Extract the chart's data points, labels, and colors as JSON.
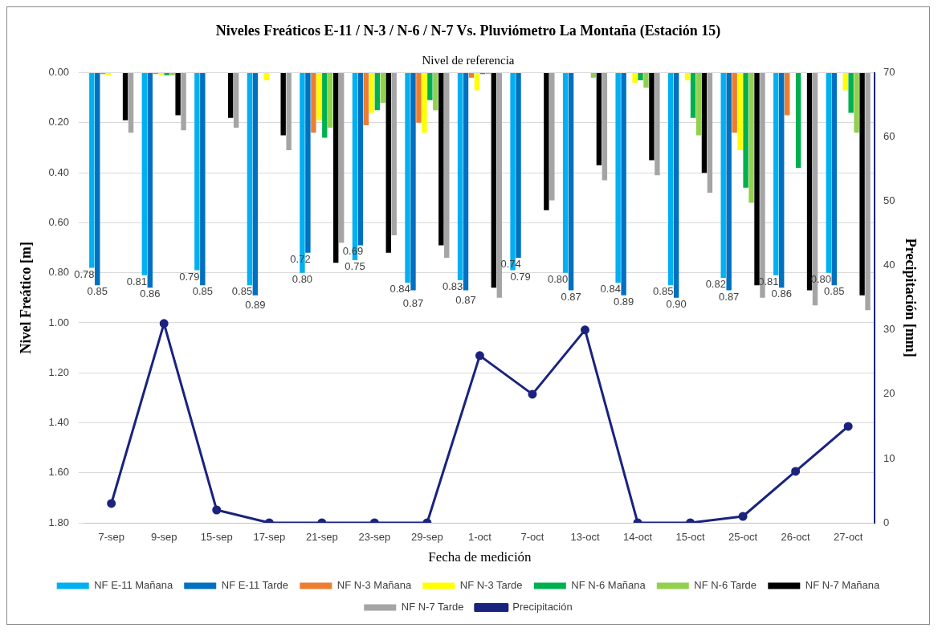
{
  "chart_data": {
    "type": "bar",
    "title": "Niveles Freáticos E-11 / N-3 / N-6 / N-7 Vs. Pluviómetro La Montaña (Estación 15)",
    "subtitle": "Nivel de referencia",
    "xlabel": "Fecha de medición",
    "ylabel": "Nivel Freático [m]",
    "y2label": "Precipitación [mm]",
    "categories": [
      "7-sep",
      "9-sep",
      "15-sep",
      "17-sep",
      "21-sep",
      "23-sep",
      "29-sep",
      "1-oct",
      "7-oct",
      "13-oct",
      "14-oct",
      "15-oct",
      "25-oct",
      "26-oct",
      "27-oct"
    ],
    "series": [
      {
        "name": "NF E-11 Mañana",
        "color": "#00b0f0",
        "values": [
          0.78,
          0.81,
          0.79,
          0.85,
          0.8,
          0.75,
          0.84,
          0.83,
          0.79,
          0.8,
          0.84,
          0.85,
          0.82,
          0.81,
          0.8
        ],
        "value_labels": [
          "0.78",
          "0.81",
          "0.79",
          "0.85",
          "0.80",
          "0.75",
          "0.84",
          "0.83",
          "0.79",
          "0.80",
          "0.84",
          "0.85",
          "0.82",
          "0.81",
          "0.80"
        ]
      },
      {
        "name": "NF E-11 Tarde",
        "color": "#0070c0",
        "values": [
          0.85,
          0.86,
          0.85,
          0.89,
          0.72,
          0.69,
          0.87,
          0.87,
          0.74,
          0.87,
          0.89,
          0.9,
          0.87,
          0.86,
          0.85
        ],
        "value_labels": [
          "0.85",
          "0.86",
          "0.85",
          "0.89",
          "0.72",
          "0.69",
          "0.87",
          "0.87",
          "0.74",
          "0.87",
          "0.89",
          "0.90",
          "0.87",
          "0.86",
          "0.85"
        ]
      },
      {
        "name": "NF N-3 Mañana",
        "color": "#ed7d31",
        "values": [
          0.005,
          0.005,
          null,
          null,
          0.24,
          0.21,
          0.2,
          0.02,
          null,
          null,
          null,
          null,
          0.24,
          0.17,
          null
        ]
      },
      {
        "name": "NF N-3 Tarde",
        "color": "#ffff00",
        "values": [
          0.01,
          0.01,
          null,
          0.03,
          0.19,
          0.16,
          0.24,
          0.07,
          null,
          null,
          0.04,
          0.03,
          0.31,
          null,
          0.07
        ]
      },
      {
        "name": "NF N-6 Mañana",
        "color": "#00b050",
        "values": [
          null,
          0.01,
          null,
          null,
          0.26,
          0.15,
          0.11,
          0.005,
          null,
          null,
          0.03,
          0.18,
          0.46,
          0.38,
          0.16
        ]
      },
      {
        "name": "NF N-6 Tarde",
        "color": "#92d050",
        "values": [
          null,
          0.01,
          null,
          null,
          0.22,
          0.12,
          0.15,
          0.005,
          null,
          0.02,
          0.06,
          0.25,
          0.52,
          null,
          0.24
        ]
      },
      {
        "name": "NF N-7 Mañana",
        "color": "#000000",
        "values": [
          0.19,
          0.17,
          0.18,
          0.25,
          0.76,
          0.72,
          0.69,
          0.86,
          0.55,
          0.37,
          0.35,
          0.4,
          0.85,
          0.87,
          0.89
        ]
      },
      {
        "name": "NF N-7 Tarde",
        "color": "#a5a5a5",
        "values": [
          0.24,
          0.23,
          0.22,
          0.31,
          0.68,
          0.65,
          0.74,
          0.9,
          0.51,
          0.43,
          0.41,
          0.48,
          0.9,
          0.93,
          0.95
        ]
      },
      {
        "name": "Precipitación",
        "type": "line",
        "axis": "y2",
        "color": "#1a237e",
        "marker": "circle",
        "values": [
          3,
          31,
          2,
          0,
          0,
          0,
          0,
          26,
          20,
          30,
          0,
          0,
          1,
          8,
          15
        ]
      }
    ],
    "ylim": [
      1.8,
      0
    ],
    "yticks": [
      {
        "value": 0,
        "label": "0.00"
      },
      {
        "value": 0.2,
        "label": "0.20"
      },
      {
        "value": 0.4,
        "label": "0.40"
      },
      {
        "value": 0.6,
        "label": "0.60"
      },
      {
        "value": 0.8,
        "label": "0.80"
      },
      {
        "value": 1,
        "label": "1.00"
      },
      {
        "value": 1.2,
        "label": "1.20"
      },
      {
        "value": 1.4,
        "label": "1.40"
      },
      {
        "value": 1.6,
        "label": "1.60"
      },
      {
        "value": 1.8,
        "label": "1.80"
      }
    ],
    "y2lim": [
      0,
      70
    ],
    "y2ticks": [
      0,
      10,
      20,
      30,
      40,
      50,
      60,
      70
    ],
    "grid": "y",
    "legend": "bottom"
  }
}
